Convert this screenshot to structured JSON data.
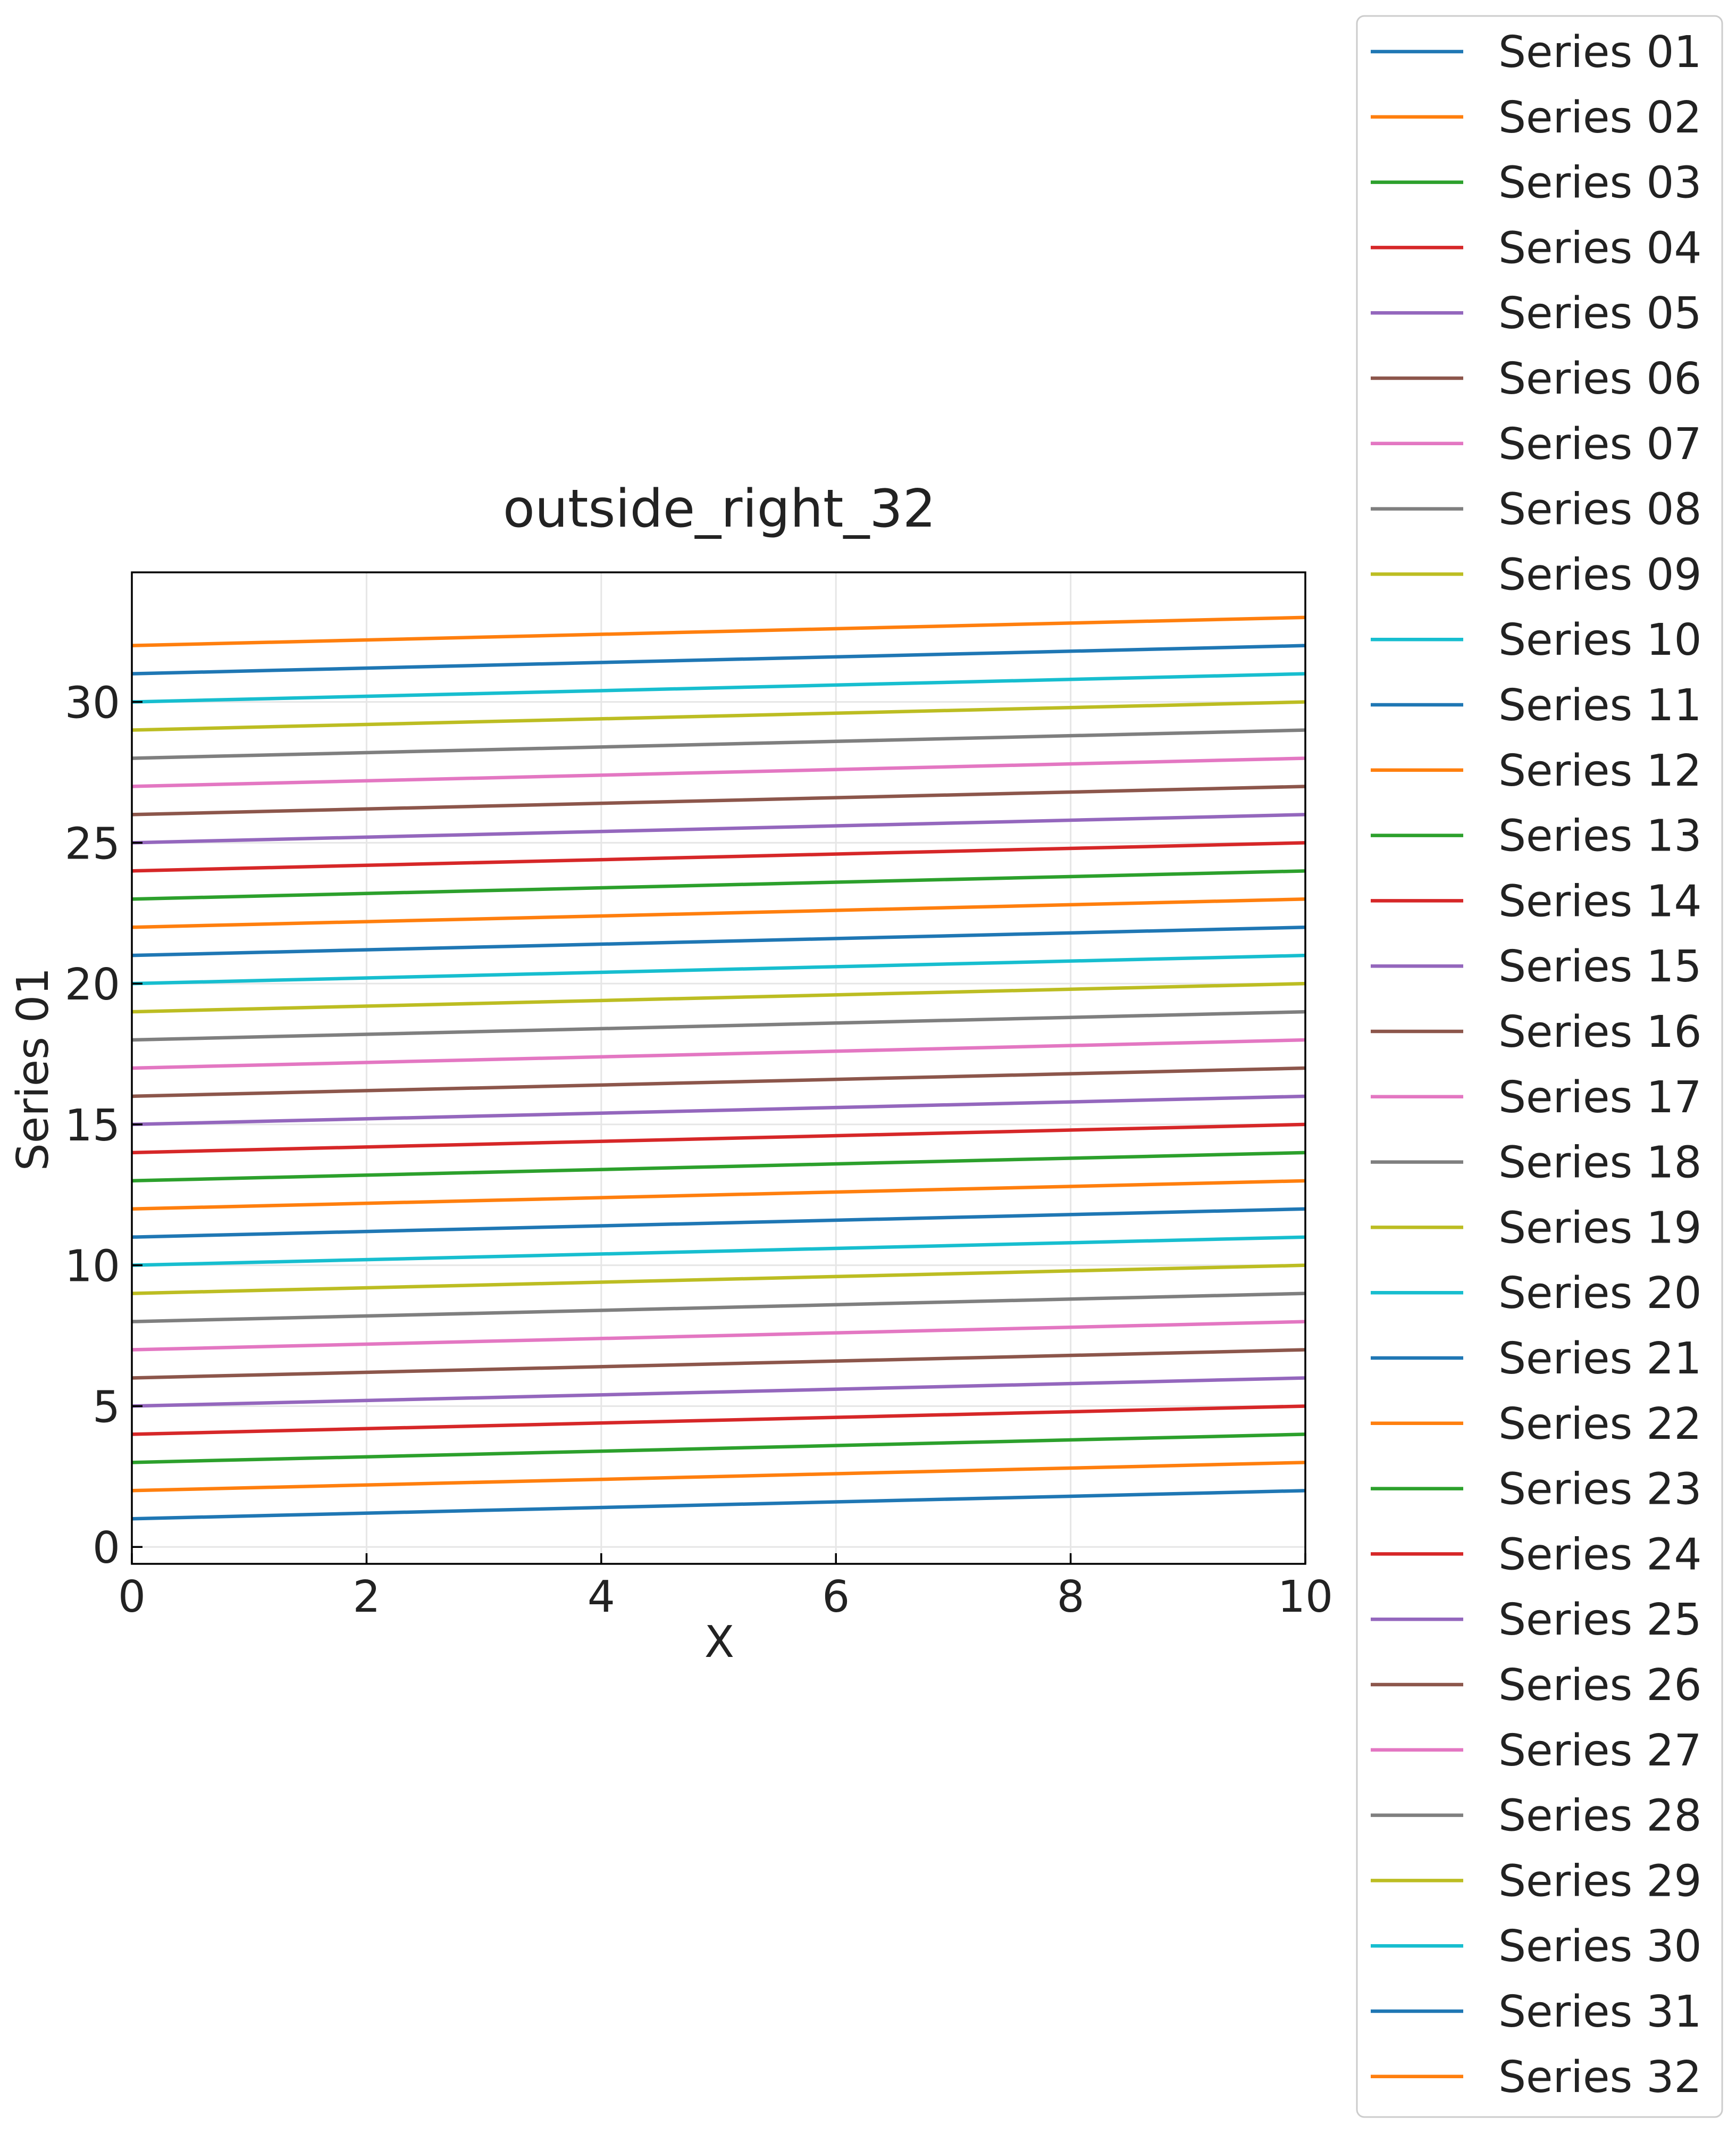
{
  "chart_data": {
    "type": "line",
    "title": "outside_right_32",
    "xlabel": "X",
    "ylabel": "Series 01",
    "xlim": [
      0,
      10
    ],
    "ylim": [
      -0.6,
      34.6
    ],
    "x_ticks": [
      0,
      2,
      4,
      6,
      8,
      10
    ],
    "y_ticks": [
      0,
      5,
      10,
      15,
      20,
      25,
      30
    ],
    "grid": true,
    "legend_position": "outside right",
    "x": [
      0,
      10
    ],
    "series": [
      {
        "name": "Series 01",
        "color": "#1f77b4",
        "values": [
          1,
          2
        ]
      },
      {
        "name": "Series 02",
        "color": "#ff7f0e",
        "values": [
          2,
          3
        ]
      },
      {
        "name": "Series 03",
        "color": "#2ca02c",
        "values": [
          3,
          4
        ]
      },
      {
        "name": "Series 04",
        "color": "#d62728",
        "values": [
          4,
          5
        ]
      },
      {
        "name": "Series 05",
        "color": "#9467bd",
        "values": [
          5,
          6
        ]
      },
      {
        "name": "Series 06",
        "color": "#8c564b",
        "values": [
          6,
          7
        ]
      },
      {
        "name": "Series 07",
        "color": "#e377c2",
        "values": [
          7,
          8
        ]
      },
      {
        "name": "Series 08",
        "color": "#7f7f7f",
        "values": [
          8,
          9
        ]
      },
      {
        "name": "Series 09",
        "color": "#bcbd22",
        "values": [
          9,
          10
        ]
      },
      {
        "name": "Series 10",
        "color": "#17becf",
        "values": [
          10,
          11
        ]
      },
      {
        "name": "Series 11",
        "color": "#1f77b4",
        "values": [
          11,
          12
        ]
      },
      {
        "name": "Series 12",
        "color": "#ff7f0e",
        "values": [
          12,
          13
        ]
      },
      {
        "name": "Series 13",
        "color": "#2ca02c",
        "values": [
          13,
          14
        ]
      },
      {
        "name": "Series 14",
        "color": "#d62728",
        "values": [
          14,
          15
        ]
      },
      {
        "name": "Series 15",
        "color": "#9467bd",
        "values": [
          15,
          16
        ]
      },
      {
        "name": "Series 16",
        "color": "#8c564b",
        "values": [
          16,
          17
        ]
      },
      {
        "name": "Series 17",
        "color": "#e377c2",
        "values": [
          17,
          18
        ]
      },
      {
        "name": "Series 18",
        "color": "#7f7f7f",
        "values": [
          18,
          19
        ]
      },
      {
        "name": "Series 19",
        "color": "#bcbd22",
        "values": [
          19,
          20
        ]
      },
      {
        "name": "Series 20",
        "color": "#17becf",
        "values": [
          20,
          21
        ]
      },
      {
        "name": "Series 21",
        "color": "#1f77b4",
        "values": [
          21,
          22
        ]
      },
      {
        "name": "Series 22",
        "color": "#ff7f0e",
        "values": [
          22,
          23
        ]
      },
      {
        "name": "Series 23",
        "color": "#2ca02c",
        "values": [
          23,
          24
        ]
      },
      {
        "name": "Series 24",
        "color": "#d62728",
        "values": [
          24,
          25
        ]
      },
      {
        "name": "Series 25",
        "color": "#9467bd",
        "values": [
          25,
          26
        ]
      },
      {
        "name": "Series 26",
        "color": "#8c564b",
        "values": [
          26,
          27
        ]
      },
      {
        "name": "Series 27",
        "color": "#e377c2",
        "values": [
          27,
          28
        ]
      },
      {
        "name": "Series 28",
        "color": "#7f7f7f",
        "values": [
          28,
          29
        ]
      },
      {
        "name": "Series 29",
        "color": "#bcbd22",
        "values": [
          29,
          30
        ]
      },
      {
        "name": "Series 30",
        "color": "#17becf",
        "values": [
          30,
          31
        ]
      },
      {
        "name": "Series 31",
        "color": "#1f77b4",
        "values": [
          31,
          32
        ]
      },
      {
        "name": "Series 32",
        "color": "#ff7f0e",
        "values": [
          32,
          33
        ]
      }
    ]
  }
}
